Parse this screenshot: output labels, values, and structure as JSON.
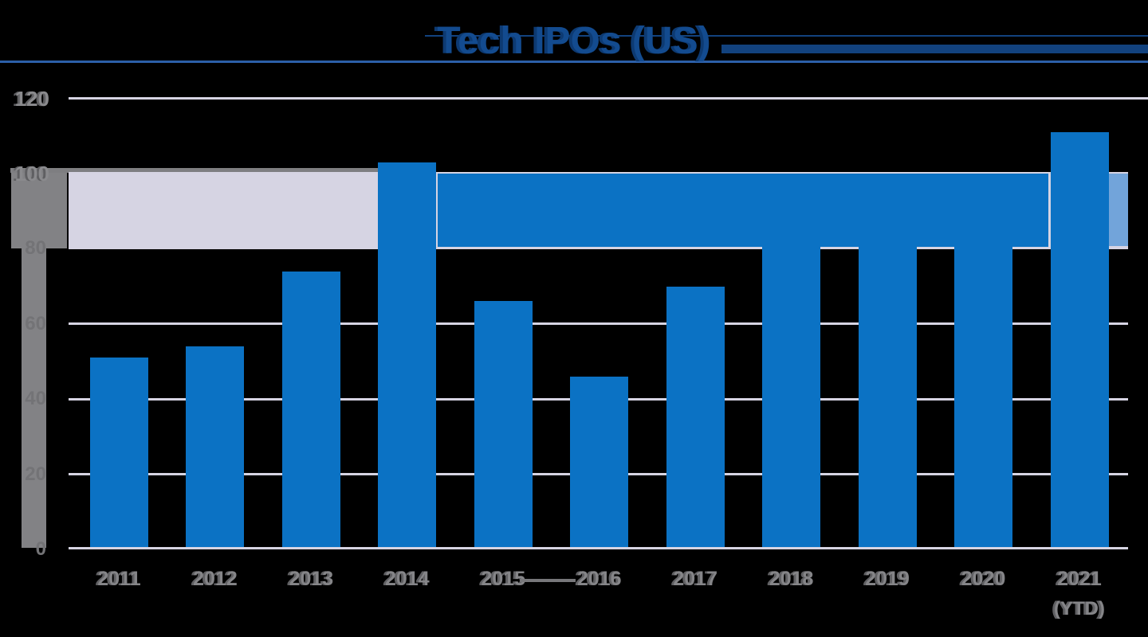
{
  "title": {
    "text": "Tech IPOs (US)"
  },
  "chart_data": {
    "type": "bar",
    "title": "Tech IPOs (US)",
    "categories": [
      "2011",
      "2012",
      "2013",
      "2014",
      "2015",
      "2016",
      "2017",
      "2018",
      "2019",
      "2020",
      "2021"
    ],
    "values": [
      51,
      54,
      74,
      103,
      66,
      46,
      70,
      84,
      90,
      88,
      111
    ],
    "values_note": "2018-2020 bar tops are hidden behind the solid blue 80-100 overlay strip; their values are estimates within that range",
    "xlabel": "",
    "ylabel": "",
    "ylim": [
      0,
      120
    ],
    "ytick_step": 20,
    "grid": true,
    "legend": false,
    "reference_band": {
      "from": 80,
      "to": 100
    },
    "overlay_strip": {
      "from_category": "2014",
      "to_category": "2021",
      "y_from": 80,
      "y_to": 100
    }
  },
  "y_axis": {
    "visible_labels": [
      "120",
      "100"
    ],
    "occluded_labels": [
      "80",
      "60",
      "40",
      "20",
      "0"
    ]
  },
  "x_axis": {
    "labels": [
      "2011",
      "2012",
      "2013",
      "2014",
      "2015",
      "2016",
      "2017",
      "2018",
      "2019",
      "2020",
      "2021"
    ],
    "sub_label": "(YTD)",
    "sub_label_under": "2021"
  },
  "colors": {
    "background": "#000000",
    "bar_blue": "#0B72C4",
    "strip_blue": "#0B72C4",
    "strip_light_blue": "#72A4DA",
    "band_lavender": "#D6D4E3",
    "grid_lavender": "#D6D4E3",
    "gray_bar": "#828285",
    "gray_line": "#7E7E81",
    "axis_text_gray": "#8A8A8D",
    "x_text_gray": "#858588",
    "title_blue": "#134B8F",
    "rule_blue": "#2C5FA8",
    "rule_dark_blue": "#12427E"
  }
}
